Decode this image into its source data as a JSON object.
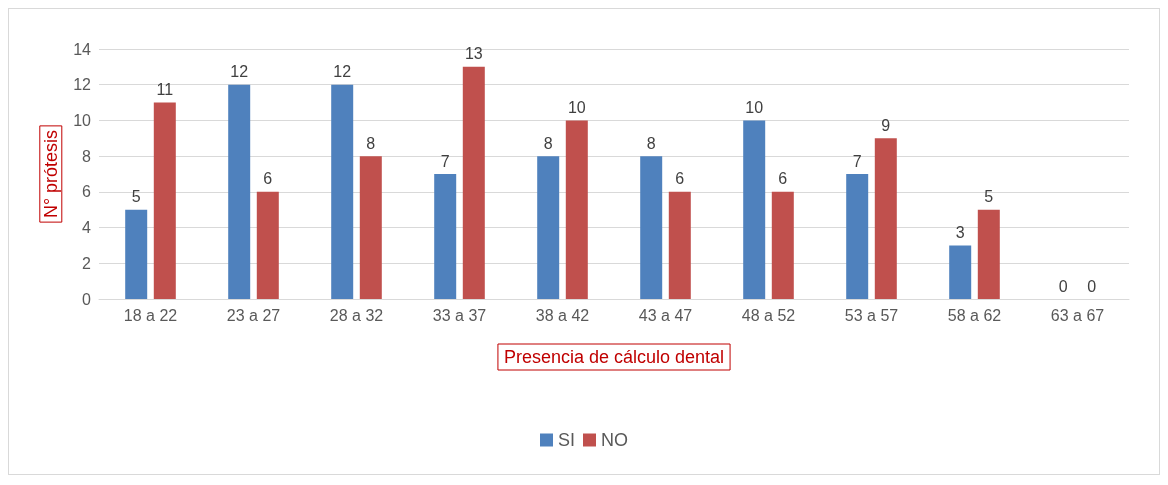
{
  "chart_data": {
    "type": "bar",
    "categories": [
      "18 a 22",
      "23 a 27",
      "28 a 32",
      "33 a 37",
      "38 a 42",
      "43 a 47",
      "48 a 52",
      "53 a 57",
      "58 a 62",
      "63 a 67"
    ],
    "series": [
      {
        "name": "SI",
        "color": "#4f81bd",
        "values": [
          5,
          12,
          12,
          7,
          8,
          8,
          10,
          7,
          3,
          0
        ]
      },
      {
        "name": "NO",
        "color": "#c0504d",
        "values": [
          11,
          6,
          8,
          13,
          10,
          6,
          6,
          9,
          5,
          0
        ]
      }
    ],
    "xlabel": "Presencia de cálculo dental",
    "ylabel": "N° prótesis",
    "ylim": [
      0,
      14
    ],
    "yticks": [
      0,
      2,
      4,
      6,
      8,
      10,
      12,
      14
    ],
    "grid": "y",
    "legend": "bottom",
    "data_labels": true
  }
}
